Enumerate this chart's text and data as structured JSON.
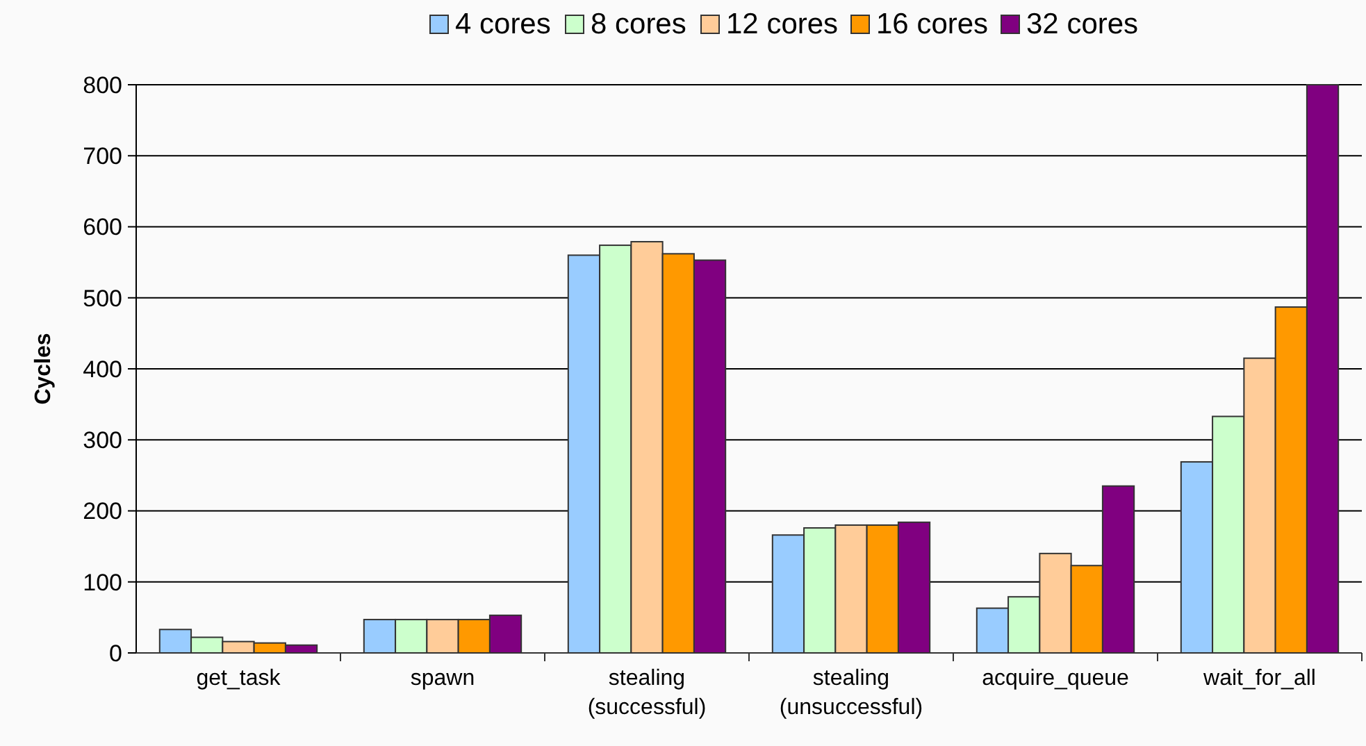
{
  "chart_data": {
    "type": "bar",
    "ylabel": "Cycles",
    "categories": [
      "get_task",
      "spawn",
      "stealing\n(successful)",
      "stealing\n(unsuccessful)",
      "acquire_queue",
      "wait_for_all"
    ],
    "series": [
      {
        "name": "4 cores",
        "color": "#99ccff",
        "values": [
          33,
          47,
          560,
          166,
          63,
          269
        ]
      },
      {
        "name": "8 cores",
        "color": "#ccffcc",
        "values": [
          22,
          47,
          574,
          176,
          79,
          333
        ]
      },
      {
        "name": "12 cores",
        "color": "#ffcc99",
        "values": [
          16,
          47,
          579,
          180,
          140,
          415
        ]
      },
      {
        "name": "16 cores",
        "color": "#ff9900",
        "values": [
          14,
          47,
          562,
          180,
          123,
          487
        ]
      },
      {
        "name": "32 cores",
        "color": "#800080",
        "values": [
          11,
          53,
          553,
          184,
          235,
          800
        ]
      }
    ],
    "ylim": [
      0,
      800
    ],
    "yticks": [
      0,
      100,
      200,
      300,
      400,
      500,
      600,
      700,
      800
    ],
    "grid": "y",
    "legend": "top"
  }
}
